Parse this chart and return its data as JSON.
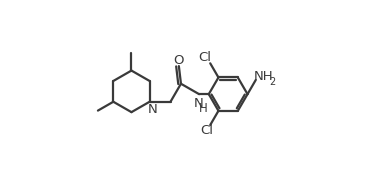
{
  "bg_color": "#ffffff",
  "line_color": "#3a3a3a",
  "line_width": 1.6,
  "font_size": 9.5,
  "figsize": [
    3.72,
    1.71
  ],
  "dpi": 100,
  "xlim": [
    0,
    3.72
  ],
  "ylim": [
    0,
    1.71
  ]
}
